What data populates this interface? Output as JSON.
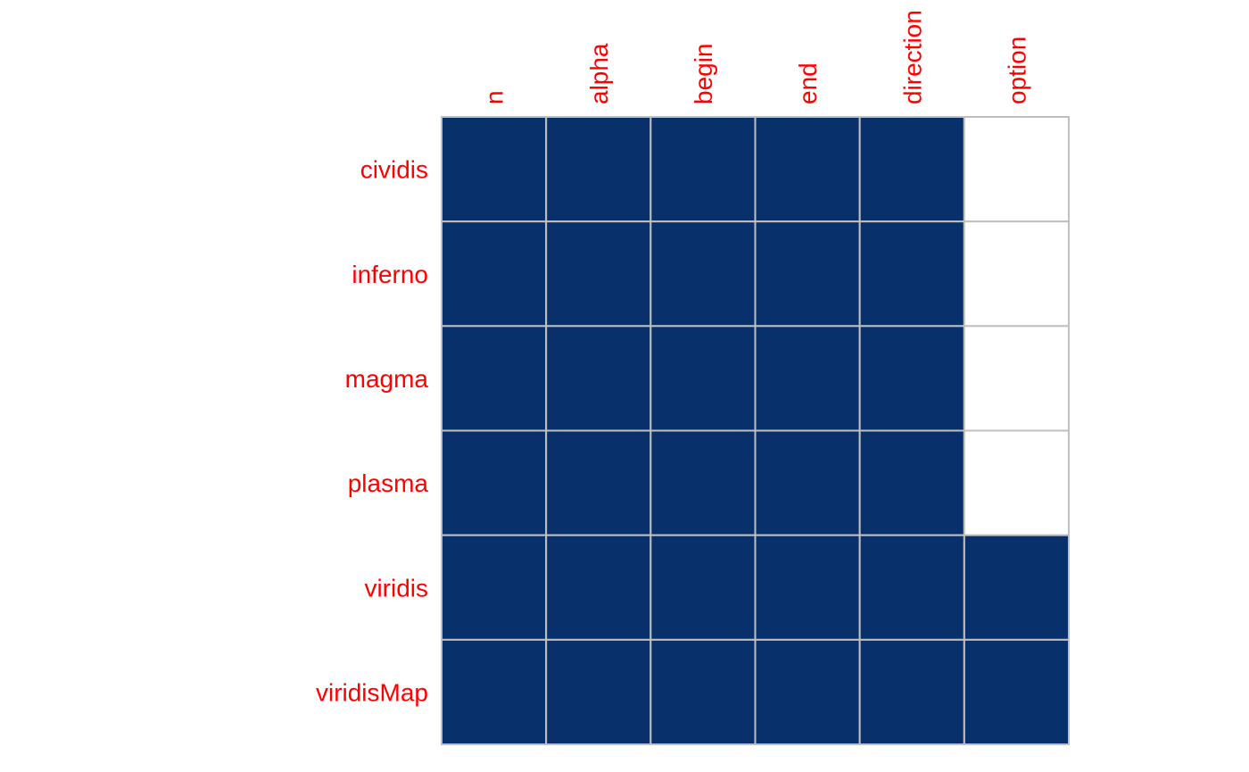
{
  "chart_data": {
    "type": "heatmap",
    "title": "",
    "xlabel": "",
    "ylabel": "",
    "columns": [
      "n",
      "alpha",
      "begin",
      "end",
      "direction",
      "option"
    ],
    "rows": [
      "cividis",
      "inferno",
      "magma",
      "plasma",
      "viridis",
      "viridisMap"
    ],
    "values": [
      [
        1,
        1,
        1,
        1,
        1,
        0
      ],
      [
        1,
        1,
        1,
        1,
        1,
        0
      ],
      [
        1,
        1,
        1,
        1,
        1,
        0
      ],
      [
        1,
        1,
        1,
        1,
        1,
        0
      ],
      [
        1,
        1,
        1,
        1,
        1,
        1
      ],
      [
        1,
        1,
        1,
        1,
        1,
        1
      ]
    ],
    "colors": {
      "filled": "#08306b",
      "empty": "#ffffff",
      "grid": "#c0c0c0",
      "label": "#ff0000"
    },
    "legend": "none",
    "grid": true
  }
}
